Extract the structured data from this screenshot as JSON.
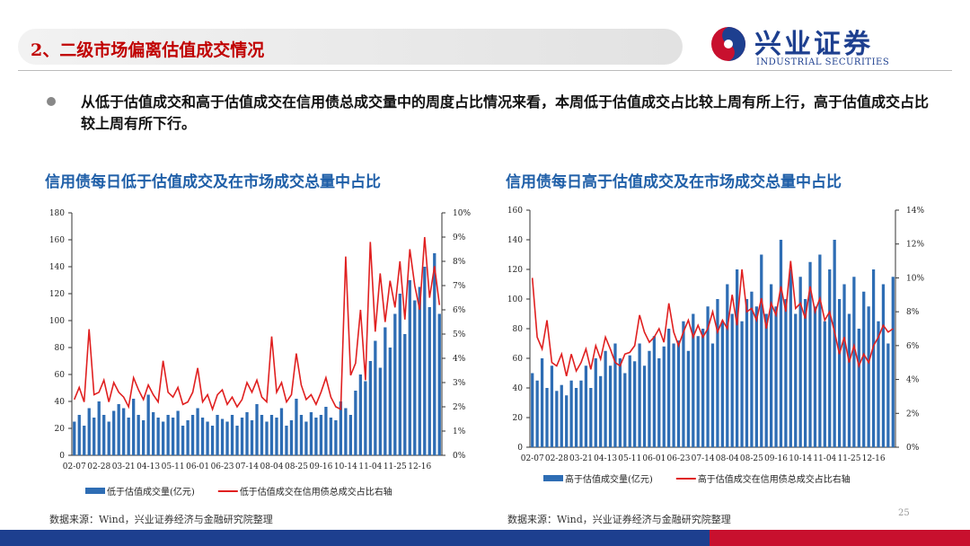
{
  "header": {
    "title": "2、二级市场偏离估值成交情况",
    "logo_name": "兴业证券",
    "logo_en": "INDUSTRIAL SECURITIES"
  },
  "bullet": "从低于估值成交和高于估值成交在信用债总成交量中的周度占比情况来看，本周低于估值成交占比较上周有所上行，高于估值成交占比较上周有所下行。",
  "chart_data": [
    {
      "type": "combo",
      "title": "信用债每日低于估值成交及在市场成交总量中占比",
      "categories": [
        "02-07",
        null,
        null,
        null,
        null,
        "02-28",
        null,
        null,
        null,
        null,
        "03-21",
        null,
        null,
        null,
        null,
        "04-13",
        null,
        null,
        null,
        null,
        "05-11",
        null,
        null,
        null,
        null,
        "06-01",
        null,
        null,
        null,
        null,
        "06-23",
        null,
        null,
        null,
        null,
        "07-14",
        null,
        null,
        null,
        null,
        "08-04",
        null,
        null,
        null,
        null,
        "08-25",
        null,
        null,
        null,
        null,
        "09-16",
        null,
        null,
        null,
        null,
        "10-14",
        null,
        null,
        null,
        null,
        "11-04",
        null,
        null,
        null,
        null,
        "11-25",
        null,
        null,
        null,
        null,
        "12-16",
        null,
        null,
        null,
        null
      ],
      "series": [
        {
          "name": "低于估值成交量(亿元)",
          "type": "bar",
          "color": "#2e6db4",
          "values": [
            25,
            30,
            22,
            35,
            28,
            40,
            30,
            25,
            33,
            38,
            35,
            28,
            42,
            30,
            26,
            45,
            32,
            28,
            25,
            30,
            28,
            33,
            22,
            26,
            30,
            35,
            28,
            25,
            22,
            30,
            27,
            25,
            30,
            22,
            28,
            32,
            26,
            38,
            30,
            25,
            30,
            28,
            35,
            22,
            26,
            42,
            30,
            25,
            32,
            28,
            30,
            36,
            28,
            26,
            40,
            35,
            30,
            48,
            60,
            55,
            70,
            85,
            65,
            95,
            80,
            105,
            120,
            90,
            130,
            115,
            125,
            140,
            110,
            150,
            105
          ]
        },
        {
          "name": "低于估值成交在信用债总成交占比右轴",
          "type": "line",
          "axis": "y2",
          "color": "#e02020",
          "values": [
            2.3,
            2.8,
            2.2,
            5.2,
            2.5,
            2.6,
            3.1,
            2.2,
            3.0,
            2.6,
            2.4,
            2.0,
            3.2,
            2.7,
            2.3,
            2.9,
            2.5,
            2.2,
            3.9,
            2.6,
            2.4,
            2.8,
            2.1,
            2.2,
            2.6,
            3.6,
            2.2,
            2.5,
            1.9,
            2.5,
            2.7,
            2.1,
            2.4,
            2.0,
            2.3,
            3.0,
            2.6,
            3.1,
            2.4,
            2.2,
            4.9,
            2.6,
            3.0,
            2.2,
            2.5,
            4.2,
            2.9,
            2.3,
            2.5,
            2.1,
            2.6,
            3.2,
            2.4,
            2.0,
            1.9,
            8.2,
            3.3,
            3.8,
            6.0,
            3.1,
            8.8,
            5.1,
            7.5,
            5.5,
            7.2,
            6.1,
            8.0,
            5.6,
            8.5,
            7.0,
            6.0,
            9.0,
            6.5,
            7.8,
            6.2
          ]
        }
      ],
      "ylim": [
        0,
        180
      ],
      "yticks": [
        0,
        20,
        40,
        60,
        80,
        100,
        120,
        140,
        160,
        180
      ],
      "y2lim": [
        0,
        10
      ],
      "y2ticks": [
        {
          "value": 0,
          "label": "0%"
        },
        {
          "value": 1,
          "label": "1%"
        },
        {
          "value": 2,
          "label": "2%"
        },
        {
          "value": 3,
          "label": "3%"
        },
        {
          "value": 4,
          "label": "4%"
        },
        {
          "value": 5,
          "label": "5%"
        },
        {
          "value": 6,
          "label": "6%"
        },
        {
          "value": 7,
          "label": "7%"
        },
        {
          "value": 8,
          "label": "8%"
        },
        {
          "value": 9,
          "label": "9%"
        },
        {
          "value": 10,
          "label": "10%"
        }
      ],
      "source": "数据来源：Wind，兴业证券经济与金融研究院整理"
    },
    {
      "type": "combo",
      "title": "信用债每日高于估值成交及在市场成交总量中占比",
      "categories": [
        "02-07",
        null,
        null,
        null,
        null,
        "02-28",
        null,
        null,
        null,
        null,
        "03-21",
        null,
        null,
        null,
        null,
        "04-13",
        null,
        null,
        null,
        null,
        "05-11",
        null,
        null,
        null,
        null,
        "06-01",
        null,
        null,
        null,
        null,
        "06-23",
        null,
        null,
        null,
        null,
        "07-14",
        null,
        null,
        null,
        null,
        "08-04",
        null,
        null,
        null,
        null,
        "08-25",
        null,
        null,
        null,
        null,
        "09-16",
        null,
        null,
        null,
        null,
        "10-14",
        null,
        null,
        null,
        null,
        "11-04",
        null,
        null,
        null,
        null,
        "11-25",
        null,
        null,
        null,
        null,
        "12-16",
        null,
        null,
        null,
        null
      ],
      "series": [
        {
          "name": "高于估值成交量(亿元)",
          "type": "bar",
          "color": "#2e6db4",
          "values": [
            50,
            45,
            60,
            40,
            55,
            38,
            42,
            35,
            45,
            40,
            45,
            55,
            40,
            60,
            48,
            65,
            55,
            70,
            60,
            50,
            62,
            58,
            70,
            55,
            65,
            75,
            60,
            68,
            80,
            70,
            72,
            85,
            65,
            90,
            75,
            80,
            95,
            70,
            100,
            85,
            110,
            90,
            120,
            85,
            100,
            105,
            95,
            130,
            90,
            110,
            95,
            140,
            100,
            120,
            90,
            115,
            100,
            125,
            95,
            130,
            85,
            120,
            140,
            100,
            110,
            90,
            115,
            80,
            105,
            95,
            120,
            85,
            110,
            70,
            115
          ]
        },
        {
          "name": "高于估值成交在信用债总成交占比右轴",
          "type": "line",
          "axis": "y2",
          "color": "#e02020",
          "values": [
            10.0,
            6.5,
            5.8,
            7.5,
            5.0,
            4.8,
            5.5,
            4.2,
            5.5,
            4.5,
            5.0,
            5.8,
            4.6,
            6.0,
            5.2,
            6.5,
            5.8,
            5.0,
            4.8,
            5.5,
            5.6,
            6.0,
            7.8,
            6.8,
            6.2,
            6.5,
            7.0,
            6.2,
            8.5,
            6.8,
            6.0,
            6.8,
            7.5,
            6.5,
            7.2,
            6.5,
            7.0,
            8.0,
            6.8,
            7.5,
            7.0,
            9.0,
            7.2,
            10.5,
            8.0,
            8.2,
            7.5,
            8.8,
            7.0,
            8.5,
            7.8,
            9.5,
            8.0,
            11.0,
            8.2,
            8.5,
            7.6,
            9.5,
            8.0,
            8.8,
            7.5,
            8.0,
            6.8,
            5.5,
            6.5,
            5.0,
            6.0,
            4.8,
            5.5,
            5.0,
            6.0,
            6.5,
            7.2,
            6.8,
            7.0
          ]
        }
      ],
      "ylim": [
        0,
        160
      ],
      "yticks": [
        0,
        20,
        40,
        60,
        80,
        100,
        120,
        140,
        160
      ],
      "y2lim": [
        0,
        14
      ],
      "y2ticks": [
        {
          "value": 0,
          "label": "0%"
        },
        {
          "value": 2,
          "label": "2%"
        },
        {
          "value": 4,
          "label": "4%"
        },
        {
          "value": 6,
          "label": "6%"
        },
        {
          "value": 8,
          "label": "8%"
        },
        {
          "value": 10,
          "label": "10%"
        },
        {
          "value": 12,
          "label": "12%"
        },
        {
          "value": 14,
          "label": "14%"
        }
      ],
      "source": "数据来源：Wind，兴业证券经济与金融研究院整理"
    }
  ],
  "page_number": "25"
}
